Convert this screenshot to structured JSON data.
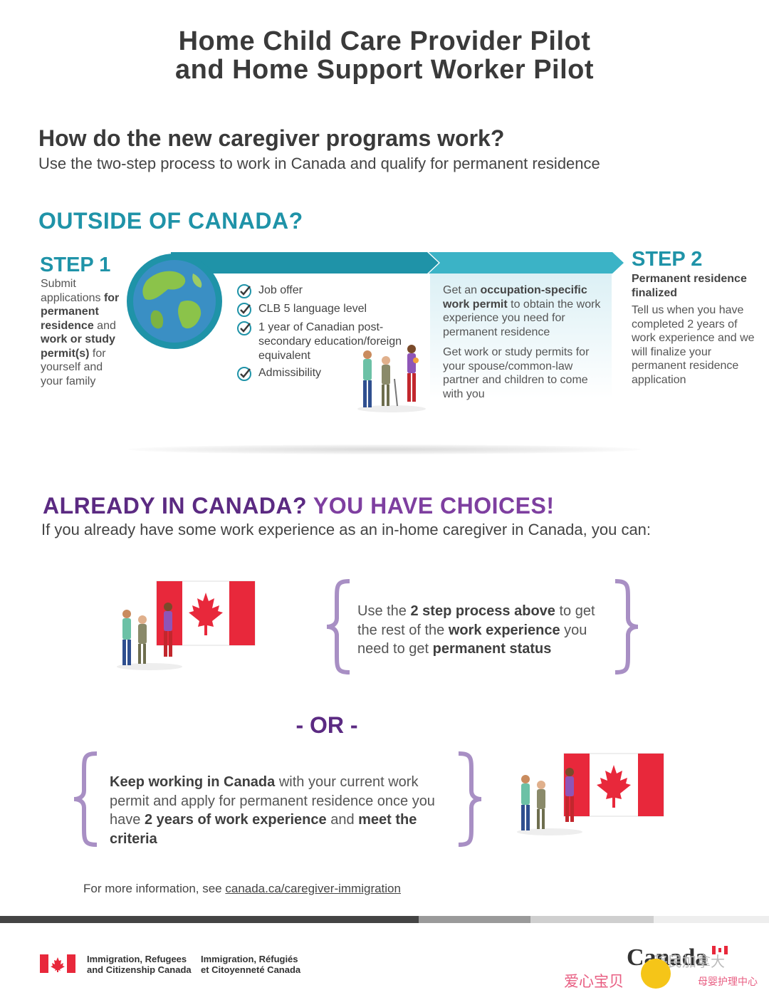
{
  "header": {
    "title_line1": "Home Child Care Provider Pilot",
    "title_line2": "and Home Support Worker Pilot"
  },
  "intro": {
    "question": "How do the new caregiver programs work?",
    "subtitle": "Use the two-step process to work in Canada and qualify for permanent residence"
  },
  "outside": {
    "heading": "OUTSIDE OF CANADA?",
    "step1": {
      "label": "STEP 1",
      "text_pre": "Submit applications ",
      "text_b1": "for permanent residence",
      "text_mid": " and ",
      "text_b2": "work or study permit(s)",
      "text_post": " for yourself and your family"
    },
    "requirements": [
      "Job offer",
      "CLB 5 language level",
      "1 year of Canadian post-secondary education/foreign equivalent",
      "Admissibility"
    ],
    "middle": {
      "p1_pre": "Get an ",
      "p1_b": "occupation-specific work permit",
      "p1_post": " to obtain the work experience you need for permanent residence",
      "p2": "Get work or study permits for your spouse/common-law partner and children to come with you"
    },
    "step2": {
      "label": "STEP 2",
      "title": "Permanent residence finalized",
      "text": "Tell us when you have completed 2 years of work experience and we will finalize your permanent residence application"
    }
  },
  "already": {
    "heading_part1": "ALREADY IN CANADA?",
    "heading_part2": " YOU HAVE CHOICES!",
    "subtitle": "If you already have some work experience as an in-home caregiver in Canada, you can:",
    "choice1": {
      "t1": "Use the ",
      "b1": "2 step process above",
      "t2": " to get the rest of the ",
      "b2": "work experience",
      "t3": " you need to get ",
      "b3": "permanent status"
    },
    "or_label": "- OR -",
    "choice2": {
      "b1": "Keep working in Canada",
      "t1": " with your current work permit and apply for permanent residence once you have ",
      "b2": "2 years of work experience",
      "t2": " and ",
      "b3": "meet the criteria"
    }
  },
  "footer": {
    "more_info": "For more information, see ",
    "link": "canada.ca/caregiver-immigration",
    "dept_en_line1": "Immigration, Refugees",
    "dept_en_line2": "and Citizenship Canada",
    "dept_fr_line1": "Immigration, Réfugiés",
    "dept_fr_line2": "et Citoyenneté Canada",
    "wordmark": "Canada",
    "watermark1": "爱心宝贝",
    "watermark2": "母婴护理中心",
    "watermark3": "移民加拿大"
  },
  "colors": {
    "teal": "#1f93a8",
    "purple": "#5b2a82",
    "flag_red": "#e8283b"
  }
}
